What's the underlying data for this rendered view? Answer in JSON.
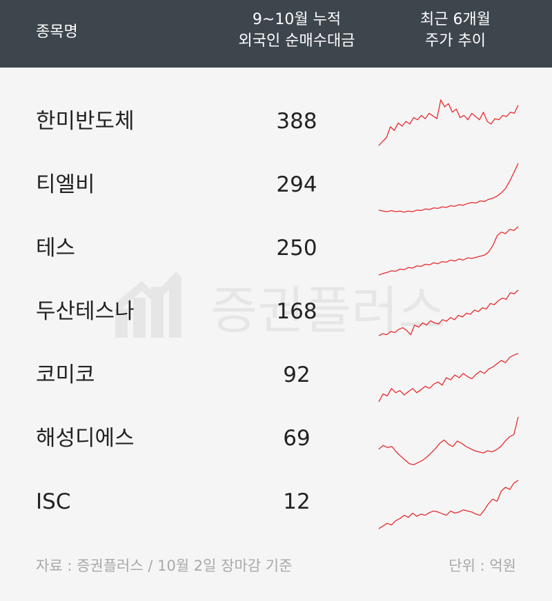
{
  "header": {
    "col_name": "종목명",
    "col_buy_line1": "9~10월 누적",
    "col_buy_line2": "외국인 순매수대금",
    "col_trend_line1": "최근 6개월",
    "col_trend_line2": "주가 추이"
  },
  "watermark_text": "증권플러스",
  "chart_data": {
    "type": "table",
    "columns": [
      "종목명",
      "9~10월 누적 외국인 순매수대금",
      "최근 6개월 주가 추이"
    ],
    "line_color": "#e8282c",
    "rows": [
      {
        "name": "한미반도체",
        "value": "388",
        "trend": [
          0.1,
          0.18,
          0.25,
          0.45,
          0.38,
          0.52,
          0.46,
          0.55,
          0.5,
          0.62,
          0.58,
          0.66,
          0.6,
          0.7,
          0.65,
          0.6,
          0.95,
          0.82,
          0.88,
          0.72,
          0.78,
          0.62,
          0.66,
          0.58,
          0.7,
          0.64,
          0.58,
          0.72,
          0.55,
          0.5,
          0.6,
          0.58,
          0.66,
          0.64,
          0.72,
          0.7,
          0.85
        ]
      },
      {
        "name": "티엘비",
        "value": "294",
        "trend": [
          0.08,
          0.06,
          0.05,
          0.07,
          0.05,
          0.06,
          0.04,
          0.06,
          0.05,
          0.08,
          0.07,
          0.1,
          0.09,
          0.12,
          0.11,
          0.14,
          0.13,
          0.16,
          0.15,
          0.18,
          0.17,
          0.2,
          0.22,
          0.21,
          0.25,
          0.24,
          0.28,
          0.3,
          0.34,
          0.4,
          0.48,
          0.62,
          0.78,
          0.95
        ]
      },
      {
        "name": "테스",
        "value": "250",
        "trend": [
          0.05,
          0.08,
          0.1,
          0.13,
          0.12,
          0.16,
          0.15,
          0.19,
          0.18,
          0.22,
          0.21,
          0.25,
          0.24,
          0.28,
          0.26,
          0.3,
          0.29,
          0.33,
          0.31,
          0.35,
          0.33,
          0.37,
          0.36,
          0.38,
          0.4,
          0.42,
          0.48,
          0.6,
          0.78,
          0.85,
          0.82,
          0.9,
          0.88,
          0.95
        ]
      },
      {
        "name": "두산테스나",
        "value": "168",
        "trend": [
          0.1,
          0.14,
          0.12,
          0.18,
          0.16,
          0.22,
          0.25,
          0.2,
          0.12,
          0.3,
          0.26,
          0.34,
          0.3,
          0.38,
          0.34,
          0.32,
          0.4,
          0.37,
          0.44,
          0.4,
          0.48,
          0.45,
          0.52,
          0.5,
          0.58,
          0.55,
          0.62,
          0.6,
          0.7,
          0.68,
          0.75,
          0.8,
          0.78,
          0.9,
          0.88,
          0.95
        ]
      },
      {
        "name": "코미코",
        "value": "92",
        "trend": [
          0.05,
          0.2,
          0.16,
          0.3,
          0.22,
          0.26,
          0.18,
          0.24,
          0.3,
          0.22,
          0.28,
          0.34,
          0.3,
          0.38,
          0.42,
          0.36,
          0.5,
          0.46,
          0.55,
          0.5,
          0.58,
          0.52,
          0.48,
          0.56,
          0.62,
          0.58,
          0.66,
          0.7,
          0.76,
          0.82,
          0.78,
          0.88,
          0.92,
          0.95
        ]
      },
      {
        "name": "해성디에스",
        "value": "69",
        "trend": [
          0.35,
          0.42,
          0.38,
          0.4,
          0.3,
          0.22,
          0.15,
          0.08,
          0.06,
          0.1,
          0.14,
          0.2,
          0.28,
          0.36,
          0.46,
          0.52,
          0.44,
          0.4,
          0.5,
          0.46,
          0.4,
          0.36,
          0.32,
          0.3,
          0.28,
          0.32,
          0.3,
          0.34,
          0.4,
          0.5,
          0.58,
          0.62,
          0.95
        ]
      },
      {
        "name": "ISC",
        "value": "12",
        "trend": [
          0.05,
          0.1,
          0.15,
          0.12,
          0.2,
          0.24,
          0.3,
          0.26,
          0.34,
          0.28,
          0.32,
          0.3,
          0.35,
          0.38,
          0.36,
          0.33,
          0.3,
          0.38,
          0.34,
          0.36,
          0.4,
          0.38,
          0.36,
          0.32,
          0.3,
          0.4,
          0.52,
          0.6,
          0.56,
          0.75,
          0.82,
          0.78,
          0.9,
          0.95
        ]
      }
    ]
  },
  "footer": {
    "source": "자료 : 증권플러스 / 10월 2일 장마감 기준",
    "unit": "단위 : 억원"
  }
}
